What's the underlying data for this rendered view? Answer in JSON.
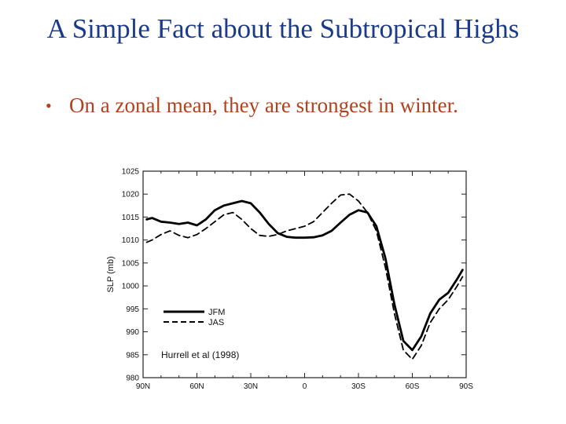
{
  "slide": {
    "title": "A Simple Fact about the Subtropical Highs",
    "bullet": "On a zonal mean, they are strongest in winter."
  },
  "chart_data": {
    "type": "line",
    "ylabel": "SLP (mb)",
    "xlabel": "",
    "ylim": [
      980,
      1025
    ],
    "y_ticks": [
      980,
      985,
      990,
      995,
      1000,
      1005,
      1010,
      1015,
      1020,
      1025
    ],
    "x_range": [
      90,
      -90
    ],
    "x_ticks": [
      {
        "value": 90,
        "label": "90N"
      },
      {
        "value": 60,
        "label": "60N"
      },
      {
        "value": 30,
        "label": "30N"
      },
      {
        "value": 0,
        "label": "0"
      },
      {
        "value": -30,
        "label": "30S"
      },
      {
        "value": -60,
        "label": "60S"
      },
      {
        "value": -90,
        "label": "90S"
      }
    ],
    "grid": false,
    "legend_position": "bottom-left",
    "annotation": "Hurrell et al (1998)",
    "series": [
      {
        "name": "JFM",
        "style": "solid",
        "color": "#000000",
        "x": [
          88,
          85,
          80,
          75,
          70,
          65,
          60,
          55,
          50,
          45,
          40,
          35,
          30,
          25,
          20,
          15,
          10,
          5,
          0,
          -5,
          -10,
          -15,
          -20,
          -25,
          -30,
          -35,
          -40,
          -45,
          -50,
          -55,
          -60,
          -65,
          -70,
          -75,
          -80,
          -85,
          -88
        ],
        "values": [
          1014.5,
          1014.8,
          1014.0,
          1013.8,
          1013.5,
          1013.8,
          1013.2,
          1014.5,
          1016.5,
          1017.5,
          1018.0,
          1018.5,
          1018.0,
          1016.0,
          1013.5,
          1011.5,
          1010.7,
          1010.5,
          1010.5,
          1010.6,
          1011.0,
          1012.0,
          1013.8,
          1015.5,
          1016.5,
          1016.0,
          1013.0,
          1006.0,
          996.0,
          988.0,
          986.0,
          989.0,
          994.0,
          997.0,
          998.5,
          1001.5,
          1003.5
        ]
      },
      {
        "name": "JAS",
        "style": "dashed",
        "color": "#000000",
        "x": [
          88,
          85,
          80,
          75,
          70,
          65,
          60,
          55,
          50,
          45,
          40,
          35,
          30,
          25,
          20,
          15,
          10,
          5,
          0,
          -5,
          -10,
          -15,
          -20,
          -25,
          -30,
          -35,
          -40,
          -45,
          -50,
          -55,
          -60,
          -65,
          -70,
          -75,
          -80,
          -85,
          -88
        ],
        "values": [
          1009.5,
          1010.0,
          1011.2,
          1012.0,
          1011.0,
          1010.5,
          1011.2,
          1012.5,
          1014.0,
          1015.5,
          1016.0,
          1014.5,
          1012.5,
          1011.0,
          1010.8,
          1011.2,
          1012.0,
          1012.5,
          1013.0,
          1014.0,
          1016.0,
          1018.0,
          1019.8,
          1020.0,
          1018.5,
          1016.0,
          1012.0,
          1004.0,
          994.0,
          986.0,
          984.0,
          987.0,
          992.0,
          995.0,
          997.0,
          1000.0,
          1002.0
        ]
      }
    ]
  }
}
